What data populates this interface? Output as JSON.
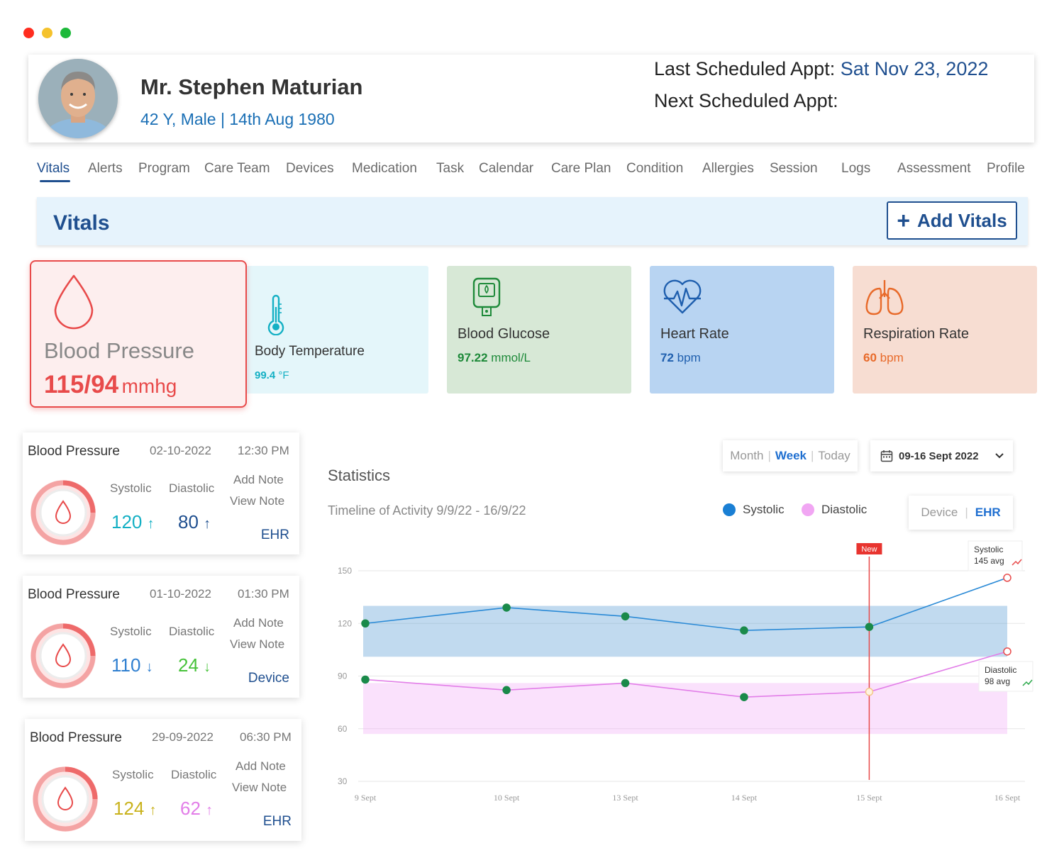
{
  "window": {
    "dot_colors": [
      "#ff2d1f",
      "#f5c22c",
      "#1db93a"
    ]
  },
  "patient": {
    "name": "Mr. Stephen Maturian",
    "info": "42 Y, Male | 14th Aug 1980",
    "last_appt_label": "Last Scheduled Appt:",
    "last_appt_value": "Sat Nov 23, 2022",
    "next_appt_label": "Next Scheduled Appt:"
  },
  "tabs": [
    "Vitals",
    "Alerts",
    "Program",
    "Care Team",
    "Devices",
    "Medication",
    "Task",
    "Calendar",
    "Care Plan",
    "Condition",
    "Allergies",
    "Session",
    "Logs",
    "Assessment",
    "Profile"
  ],
  "vitals_header": {
    "title": "Vitals",
    "add_label": "Add Vitals"
  },
  "vital_cards": {
    "bp": {
      "name": "Blood Pressure",
      "value": "115/94",
      "unit": "mmhg"
    },
    "temp": {
      "name": "Body Temperature",
      "value": "99.4",
      "unit": "°F"
    },
    "glucose": {
      "name": "Blood Glucose",
      "value": "97.22",
      "unit": "mmol/L"
    },
    "heart": {
      "name": "Heart Rate",
      "value": "72",
      "unit": "bpm"
    },
    "resp": {
      "name": "Respiration Rate",
      "value": "60",
      "unit": "bpm"
    }
  },
  "readings": [
    {
      "title": "Blood Pressure",
      "date": "02-10-2022",
      "time": "12:30 PM",
      "systolic_label": "Systolic",
      "diastolic_label": "Diastolic",
      "systolic": "120",
      "diastolic": "80",
      "sys_arrow": "↑",
      "dia_arrow": "↑",
      "add_note": "Add Note",
      "view_note": "View Note",
      "source": "EHR",
      "sys_color": "#14b0c4",
      "dia_color": "#1f4f8f"
    },
    {
      "title": "Blood Pressure",
      "date": "01-10-2022",
      "time": "01:30 PM",
      "systolic_label": "Systolic",
      "diastolic_label": "Diastolic",
      "systolic": "110",
      "diastolic": "24",
      "sys_arrow": "↓",
      "dia_arrow": "↓",
      "add_note": "Add Note",
      "view_note": "View Note",
      "source": "Device",
      "sys_color": "#2f7fd0",
      "dia_color": "#47c23a"
    },
    {
      "title": "Blood Pressure",
      "date": "29-09-2022",
      "time": "06:30 PM",
      "systolic_label": "Systolic",
      "diastolic_label": "Diastolic",
      "systolic": "124",
      "diastolic": "62",
      "sys_arrow": "↑",
      "dia_arrow": "↑",
      "add_note": "Add Note",
      "view_note": "View Note",
      "source": "EHR",
      "sys_color": "#c9b21c",
      "dia_color": "#e27ee8"
    }
  ],
  "stats": {
    "title": "Statistics",
    "subtitle": "Timeline of Activity 9/9/22 - 16/9/22",
    "range": {
      "month": "Month",
      "week": "Week",
      "today": "Today",
      "selected": "Week"
    },
    "date_range": "09-16 Sept 2022",
    "source_toggle": {
      "device": "Device",
      "ehr": "EHR",
      "selected": "EHR"
    },
    "new_label": "New",
    "sys_tip_name": "Systolic",
    "sys_tip_avg": "145 avg",
    "dia_tip_name": "Diastolic",
    "dia_tip_avg": "98 avg"
  },
  "chart_data": {
    "type": "line",
    "x": [
      "9 Sept",
      "10 Sept",
      "13 Sept",
      "14 Sept",
      "15 Sept",
      "16 Sept"
    ],
    "y_ticks": [
      150,
      120,
      90,
      60,
      30
    ],
    "ylim": [
      30,
      150
    ],
    "series": [
      {
        "name": "Systolic",
        "color": "#2a8ad6",
        "values": [
          120,
          129,
          124,
          116,
          118,
          146
        ],
        "band": [
          101,
          130
        ]
      },
      {
        "name": "Diastolic",
        "color": "#e27ee8",
        "values": [
          88,
          82,
          86,
          78,
          81,
          104
        ],
        "band": [
          57,
          86
        ]
      }
    ],
    "marker_x": "15 Sept",
    "legend": "top-right",
    "grid": true
  }
}
